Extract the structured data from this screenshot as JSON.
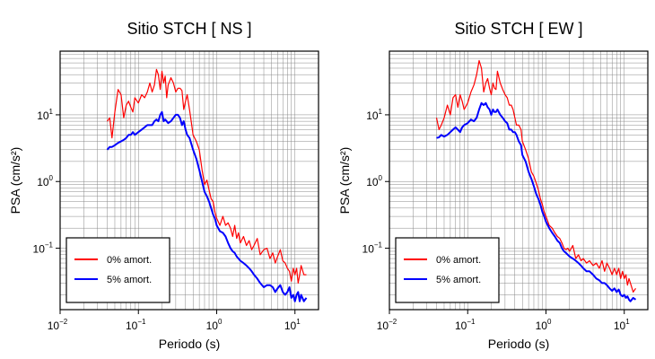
{
  "chart_data": [
    {
      "type": "line",
      "title": "Sitio STCH [ NS ]",
      "xlabel": "Periodo (s)",
      "ylabel": "PSA (cm/s²)",
      "xscale": "log",
      "yscale": "log",
      "xlim": [
        0.01,
        20
      ],
      "ylim": [
        0.012,
        90
      ],
      "grid": true,
      "legend_position": "bottom-left",
      "xticks": [
        {
          "value": 0.01,
          "base": "10",
          "exp": "−2"
        },
        {
          "value": 0.1,
          "base": "10",
          "exp": "−1"
        },
        {
          "value": 1,
          "base": "10",
          "exp": "0"
        },
        {
          "value": 10,
          "base": "10",
          "exp": "1"
        }
      ],
      "yticks": [
        {
          "value": 0.1,
          "base": "10",
          "exp": "−1"
        },
        {
          "value": 1,
          "base": "10",
          "exp": "0"
        },
        {
          "value": 10,
          "base": "10",
          "exp": "1"
        }
      ],
      "series": [
        {
          "name": "0% amort.",
          "color": "#ff0000",
          "x": [
            0.04,
            0.043,
            0.046,
            0.05,
            0.055,
            0.06,
            0.065,
            0.07,
            0.075,
            0.08,
            0.085,
            0.09,
            0.1,
            0.11,
            0.12,
            0.13,
            0.14,
            0.15,
            0.16,
            0.17,
            0.18,
            0.19,
            0.2,
            0.21,
            0.22,
            0.23,
            0.24,
            0.26,
            0.28,
            0.3,
            0.32,
            0.34,
            0.36,
            0.38,
            0.4,
            0.42,
            0.45,
            0.48,
            0.5,
            0.55,
            0.6,
            0.65,
            0.7,
            0.75,
            0.8,
            0.85,
            0.9,
            0.95,
            1.0,
            1.1,
            1.2,
            1.3,
            1.4,
            1.5,
            1.6,
            1.7,
            1.8,
            1.9,
            2.0,
            2.2,
            2.4,
            2.6,
            2.8,
            3.0,
            3.3,
            3.6,
            4.0,
            4.4,
            4.8,
            5.2,
            5.6,
            6.0,
            6.5,
            7.0,
            7.5,
            8.0,
            8.5,
            9.0,
            9.5,
            10.0,
            10.5,
            11.0,
            11.5,
            12.0,
            13.0,
            14.0
          ],
          "y": [
            8,
            9,
            4.5,
            11,
            24,
            20,
            9,
            14,
            16,
            13,
            11,
            18,
            15,
            20,
            18,
            22,
            30,
            22,
            28,
            48,
            40,
            24,
            45,
            30,
            38,
            18,
            28,
            36,
            30,
            22,
            25,
            25,
            23,
            12,
            16,
            20,
            12,
            7,
            5,
            4,
            3,
            1.5,
            0.9,
            1.05,
            0.75,
            0.55,
            0.5,
            0.35,
            0.28,
            0.22,
            0.3,
            0.22,
            0.24,
            0.2,
            0.15,
            0.22,
            0.14,
            0.17,
            0.12,
            0.15,
            0.11,
            0.13,
            0.095,
            0.11,
            0.14,
            0.08,
            0.095,
            0.1,
            0.07,
            0.085,
            0.06,
            0.075,
            0.095,
            0.065,
            0.06,
            0.05,
            0.045,
            0.032,
            0.05,
            0.04,
            0.05,
            0.03,
            0.04,
            0.055,
            0.04,
            0.04
          ]
        },
        {
          "name": "5% amort.",
          "color": "#0000ff",
          "x": [
            0.04,
            0.043,
            0.046,
            0.05,
            0.055,
            0.06,
            0.065,
            0.07,
            0.075,
            0.08,
            0.085,
            0.09,
            0.1,
            0.11,
            0.12,
            0.13,
            0.14,
            0.15,
            0.16,
            0.17,
            0.18,
            0.19,
            0.2,
            0.21,
            0.22,
            0.23,
            0.24,
            0.26,
            0.28,
            0.3,
            0.32,
            0.34,
            0.36,
            0.38,
            0.4,
            0.42,
            0.45,
            0.48,
            0.5,
            0.55,
            0.6,
            0.65,
            0.7,
            0.75,
            0.8,
            0.85,
            0.9,
            0.95,
            1.0,
            1.1,
            1.2,
            1.3,
            1.4,
            1.5,
            1.6,
            1.7,
            1.8,
            1.9,
            2.0,
            2.2,
            2.4,
            2.6,
            2.8,
            3.0,
            3.3,
            3.6,
            4.0,
            4.4,
            4.8,
            5.2,
            5.6,
            6.0,
            6.5,
            7.0,
            7.5,
            8.0,
            8.5,
            9.0,
            9.5,
            10.0,
            10.5,
            11.0,
            11.5,
            12.0,
            13.0,
            14.0
          ],
          "y": [
            3,
            3.3,
            3.3,
            3.5,
            3.8,
            4,
            4.2,
            4.5,
            5,
            5,
            5.5,
            5,
            5.5,
            6,
            6.5,
            7,
            7,
            7,
            8,
            8.5,
            8,
            10,
            11,
            8,
            8.5,
            8,
            7.5,
            8,
            9,
            10,
            10,
            9,
            7,
            8,
            6,
            5,
            4.5,
            3.5,
            3,
            2.2,
            1.5,
            1.0,
            0.7,
            0.6,
            0.5,
            0.4,
            0.32,
            0.28,
            0.22,
            0.18,
            0.17,
            0.15,
            0.12,
            0.1,
            0.09,
            0.085,
            0.075,
            0.07,
            0.065,
            0.06,
            0.055,
            0.05,
            0.045,
            0.04,
            0.035,
            0.03,
            0.026,
            0.028,
            0.028,
            0.026,
            0.022,
            0.025,
            0.028,
            0.022,
            0.02,
            0.022,
            0.026,
            0.018,
            0.02,
            0.016,
            0.02,
            0.022,
            0.016,
            0.02,
            0.016,
            0.018
          ]
        }
      ]
    },
    {
      "type": "line",
      "title": "Sitio STCH [ EW ]",
      "xlabel": "Periodo (s)",
      "ylabel": "PSA (cm/s²)",
      "xscale": "log",
      "yscale": "log",
      "xlim": [
        0.01,
        20
      ],
      "ylim": [
        0.012,
        90
      ],
      "grid": true,
      "legend_position": "bottom-left",
      "xticks": [
        {
          "value": 0.01,
          "base": "10",
          "exp": "−2"
        },
        {
          "value": 0.1,
          "base": "10",
          "exp": "−1"
        },
        {
          "value": 1,
          "base": "10",
          "exp": "0"
        },
        {
          "value": 10,
          "base": "10",
          "exp": "1"
        }
      ],
      "yticks": [
        {
          "value": 0.1,
          "base": "10",
          "exp": "−1"
        },
        {
          "value": 1,
          "base": "10",
          "exp": "0"
        },
        {
          "value": 10,
          "base": "10",
          "exp": "1"
        }
      ],
      "series": [
        {
          "name": "0% amort.",
          "color": "#ff0000",
          "x": [
            0.04,
            0.043,
            0.046,
            0.05,
            0.055,
            0.06,
            0.065,
            0.07,
            0.075,
            0.08,
            0.085,
            0.09,
            0.1,
            0.11,
            0.12,
            0.13,
            0.14,
            0.15,
            0.16,
            0.17,
            0.18,
            0.19,
            0.2,
            0.21,
            0.22,
            0.23,
            0.24,
            0.26,
            0.28,
            0.3,
            0.32,
            0.34,
            0.36,
            0.38,
            0.4,
            0.42,
            0.45,
            0.48,
            0.5,
            0.55,
            0.6,
            0.65,
            0.7,
            0.75,
            0.8,
            0.85,
            0.9,
            0.95,
            1.0,
            1.1,
            1.2,
            1.3,
            1.4,
            1.5,
            1.6,
            1.7,
            1.8,
            1.9,
            2.0,
            2.2,
            2.4,
            2.6,
            2.8,
            3.0,
            3.3,
            3.6,
            4.0,
            4.4,
            4.8,
            5.2,
            5.6,
            6.0,
            6.5,
            7.0,
            7.5,
            8.0,
            8.5,
            9.0,
            9.5,
            10.0,
            10.5,
            11.0,
            11.5,
            12.0,
            13.0,
            14.0
          ],
          "y": [
            9,
            6,
            7,
            9,
            14,
            10,
            18,
            20,
            13,
            20,
            16,
            12,
            15,
            22,
            28,
            40,
            65,
            50,
            22,
            30,
            35,
            25,
            20,
            30,
            25,
            24,
            45,
            30,
            24,
            20,
            18,
            14,
            14,
            12,
            9,
            7,
            7,
            6,
            4,
            3,
            2.2,
            1.4,
            1.2,
            0.95,
            0.75,
            0.55,
            0.45,
            0.35,
            0.3,
            0.22,
            0.2,
            0.17,
            0.15,
            0.14,
            0.12,
            0.1,
            0.095,
            0.1,
            0.09,
            0.11,
            0.07,
            0.08,
            0.065,
            0.07,
            0.06,
            0.065,
            0.055,
            0.06,
            0.05,
            0.065,
            0.045,
            0.06,
            0.05,
            0.04,
            0.05,
            0.04,
            0.05,
            0.035,
            0.045,
            0.035,
            0.04,
            0.028,
            0.035,
            0.03,
            0.022,
            0.025
          ]
        },
        {
          "name": "5% amort.",
          "color": "#0000ff",
          "x": [
            0.04,
            0.043,
            0.046,
            0.05,
            0.055,
            0.06,
            0.065,
            0.07,
            0.075,
            0.08,
            0.085,
            0.09,
            0.1,
            0.11,
            0.12,
            0.13,
            0.14,
            0.15,
            0.16,
            0.17,
            0.18,
            0.19,
            0.2,
            0.21,
            0.22,
            0.23,
            0.24,
            0.26,
            0.28,
            0.3,
            0.32,
            0.34,
            0.36,
            0.38,
            0.4,
            0.42,
            0.45,
            0.48,
            0.5,
            0.55,
            0.6,
            0.65,
            0.7,
            0.75,
            0.8,
            0.85,
            0.9,
            0.95,
            1.0,
            1.1,
            1.2,
            1.3,
            1.4,
            1.5,
            1.6,
            1.7,
            1.8,
            1.9,
            2.0,
            2.2,
            2.4,
            2.6,
            2.8,
            3.0,
            3.3,
            3.6,
            4.0,
            4.4,
            4.8,
            5.2,
            5.6,
            6.0,
            6.5,
            7.0,
            7.5,
            8.0,
            8.5,
            9.0,
            9.5,
            10.0,
            10.5,
            11.0,
            11.5,
            12.0,
            13.0,
            14.0
          ],
          "y": [
            4.5,
            4.6,
            5,
            4.7,
            5,
            5.5,
            6,
            6.5,
            6,
            5.5,
            6.5,
            7,
            7.5,
            8.5,
            8,
            9,
            12,
            15,
            14,
            15,
            13,
            12,
            10,
            12,
            11,
            11,
            12,
            10,
            9,
            8,
            7.5,
            6,
            6,
            5.5,
            5.5,
            5,
            4,
            3.5,
            2.5,
            2,
            1.4,
            1.1,
            0.85,
            0.65,
            0.55,
            0.45,
            0.35,
            0.3,
            0.25,
            0.2,
            0.17,
            0.15,
            0.13,
            0.12,
            0.1,
            0.09,
            0.085,
            0.08,
            0.075,
            0.07,
            0.065,
            0.06,
            0.055,
            0.05,
            0.045,
            0.045,
            0.04,
            0.035,
            0.033,
            0.03,
            0.03,
            0.028,
            0.025,
            0.023,
            0.025,
            0.022,
            0.024,
            0.02,
            0.019,
            0.02,
            0.018,
            0.019,
            0.017,
            0.016,
            0.018,
            0.017
          ]
        }
      ]
    }
  ]
}
